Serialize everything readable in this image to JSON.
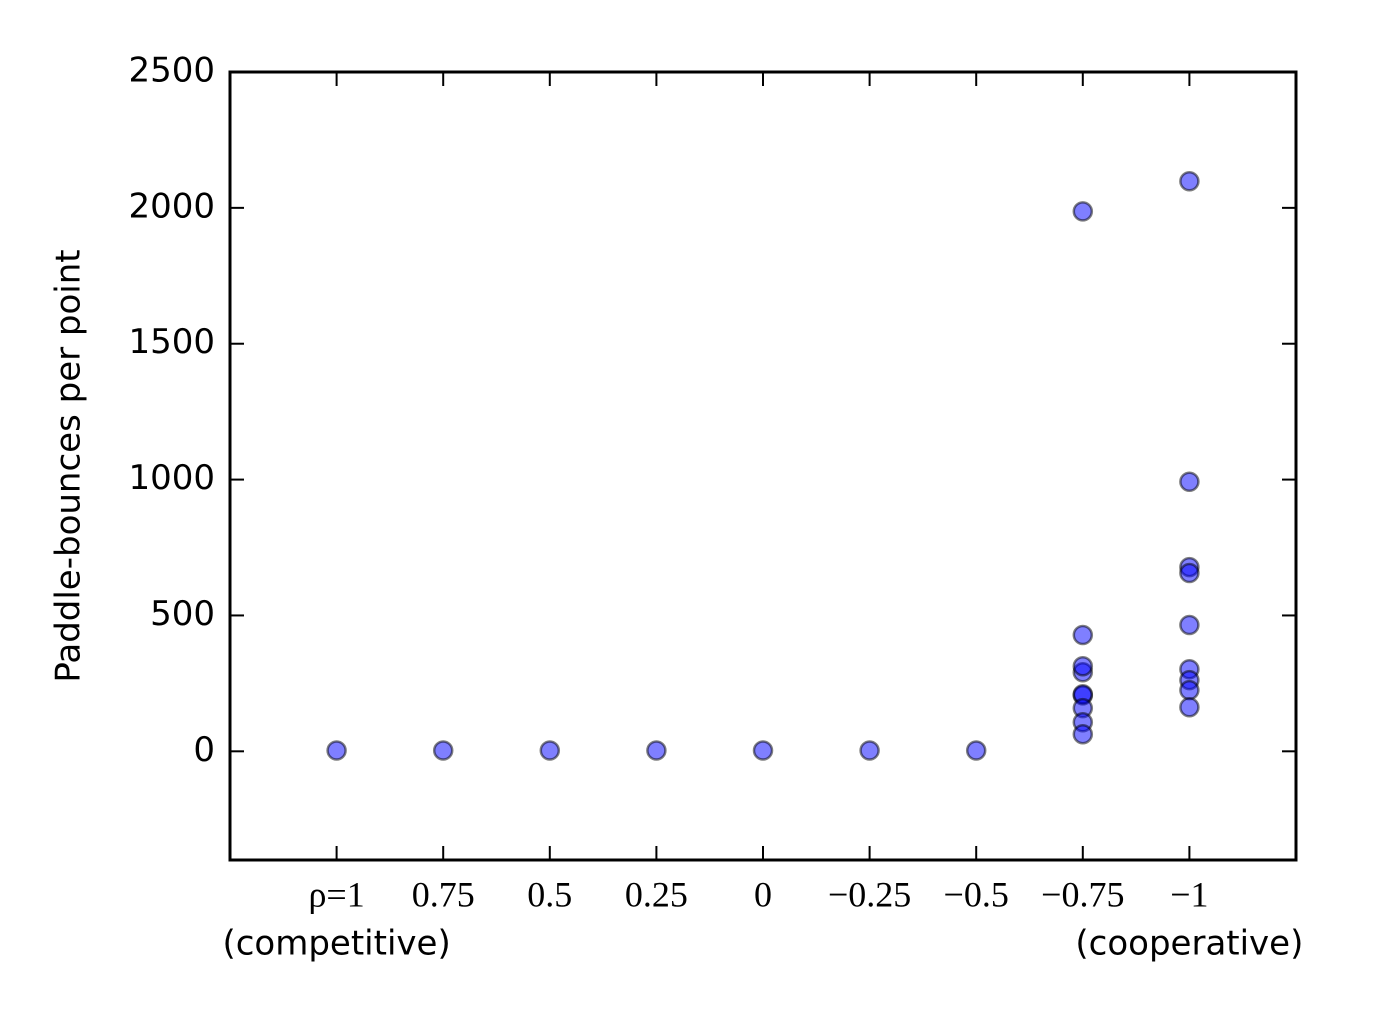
{
  "chart_data": {
    "type": "scatter",
    "ylabel": "Paddle-bounces per point",
    "annotations": [
      "(competitive)",
      "(cooperative)"
    ],
    "xlim": [
      1.25,
      -1.25
    ],
    "ylim": [
      -400,
      2500
    ],
    "xticks": [
      {
        "value": 1,
        "label": "ρ=1"
      },
      0.75,
      0.5,
      0.25,
      0,
      {
        "value": -0.25,
        "label": "−0.25"
      },
      {
        "value": -0.5,
        "label": "−0.5"
      },
      {
        "value": -0.75,
        "label": "−0.75"
      },
      {
        "value": -1,
        "label": "−1"
      }
    ],
    "yticks": [
      0,
      500,
      1000,
      1500,
      2000,
      2500
    ],
    "color": "#0000ff",
    "alpha": 0.5,
    "x": [
      1,
      0.75,
      0.5,
      0.25,
      0,
      -0.25,
      -0.5,
      -0.75,
      -0.75,
      -0.75,
      -0.75,
      -0.75,
      -0.75,
      -0.75,
      -0.75,
      -0.75,
      -1,
      -1,
      -1,
      -1,
      -1,
      -1,
      -1,
      -1,
      -1
    ],
    "values": [
      3,
      3,
      3,
      3,
      3,
      3,
      3,
      1987,
      428,
      291,
      313,
      206,
      210,
      159,
      107,
      63,
      2098,
      992,
      678,
      656,
      465,
      302,
      262,
      225,
      162
    ]
  }
}
